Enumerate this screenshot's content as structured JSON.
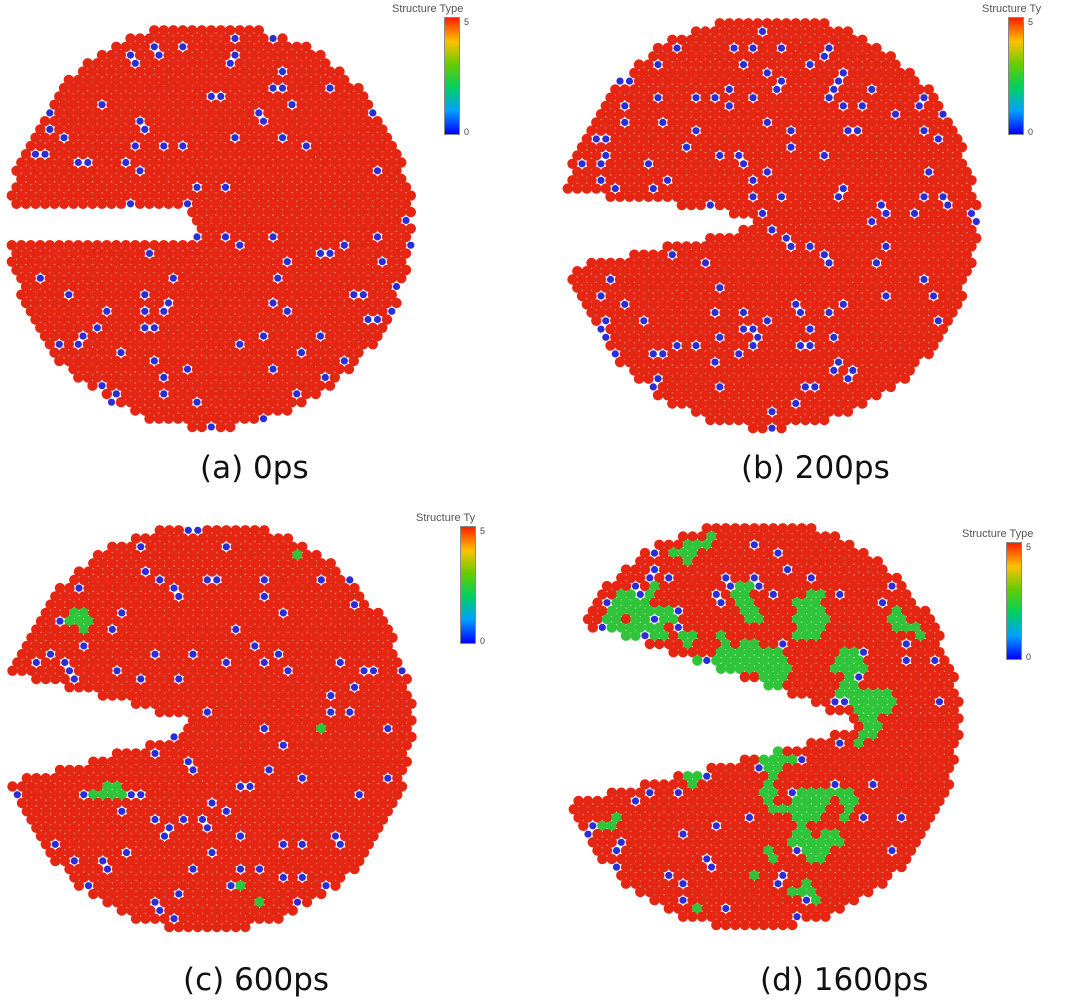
{
  "colors": {
    "fcc": "#2fc43a",
    "hcp": "#e52612",
    "other": "#2b2ed6",
    "colormap": [
      "#0000ff",
      "#00a0ff",
      "#00d060",
      "#66cc00",
      "#ffc000",
      "#ff2000"
    ]
  },
  "panels": [
    {
      "id": "a",
      "caption": "(a) 0ps",
      "legend": {
        "title": "Structure Type",
        "max": "5",
        "min": "0"
      }
    },
    {
      "id": "b",
      "caption": "(b) 200ps",
      "legend": {
        "title": "Structure Ty",
        "max": "5",
        "min": "0"
      }
    },
    {
      "id": "c",
      "caption": "(c) 600ps",
      "legend": {
        "title": "Structure Ty",
        "max": "5",
        "min": "0"
      }
    },
    {
      "id": "d",
      "caption": "(d) 1600ps",
      "legend": {
        "title": "Structure Type",
        "max": "5",
        "min": "0"
      }
    }
  ]
}
